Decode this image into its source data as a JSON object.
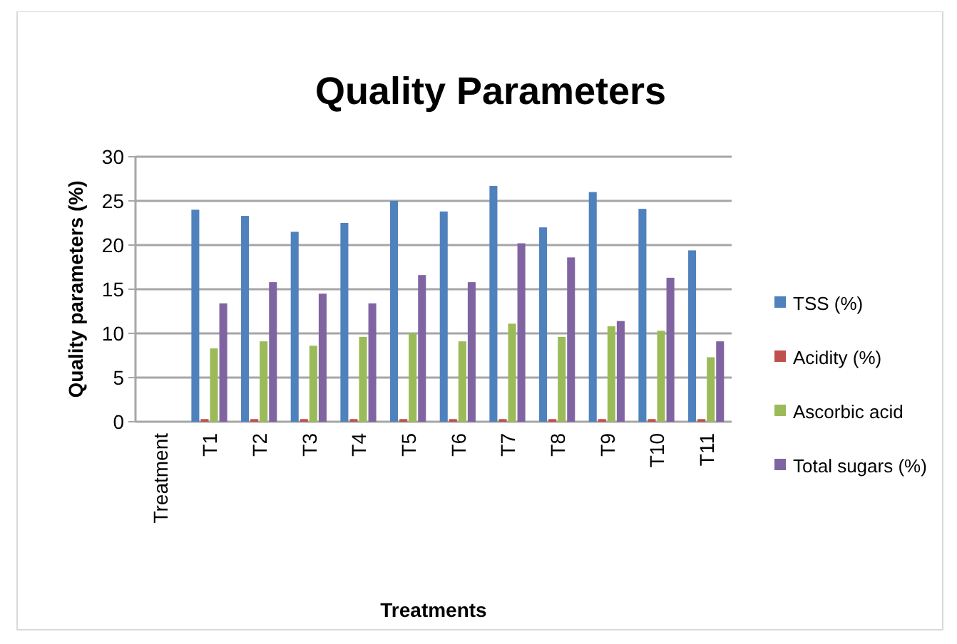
{
  "chart_data": {
    "type": "bar",
    "title": "Quality Parameters",
    "xlabel": "Treatments",
    "ylabel": "Quality parameters  (%)",
    "categories": [
      "Treatment",
      "T1",
      "T2",
      "T3",
      "T4",
      "T5",
      "T6",
      "T7",
      "T8",
      "T9",
      "T10",
      "T11"
    ],
    "series": [
      {
        "name": "TSS (%)",
        "color": "#4f81bd",
        "values": [
          null,
          24,
          23.3,
          21.5,
          22.5,
          25,
          23.8,
          26.7,
          22,
          26,
          24.1,
          19.4
        ]
      },
      {
        "name": "Acidity (%)",
        "color": "#c0504d",
        "values": [
          null,
          0.3,
          0.3,
          0.3,
          0.3,
          0.3,
          0.3,
          0.3,
          0.3,
          0.3,
          0.3,
          0.3
        ]
      },
      {
        "name": "Ascorbic acid",
        "color": "#9bbb59",
        "values": [
          null,
          8.3,
          9.1,
          8.6,
          9.6,
          10,
          9.1,
          11.1,
          9.6,
          10.8,
          10.3,
          7.3
        ]
      },
      {
        "name": "Total sugars (%)",
        "color": "#8064a2",
        "values": [
          null,
          13.4,
          15.8,
          14.5,
          13.4,
          16.6,
          15.8,
          20.2,
          18.6,
          11.4,
          16.3,
          9.1
        ]
      }
    ],
    "ylim": [
      0,
      30
    ],
    "yticks": [
      0,
      5,
      10,
      15,
      20,
      25,
      30
    ],
    "grid": "y",
    "legend": "right"
  }
}
